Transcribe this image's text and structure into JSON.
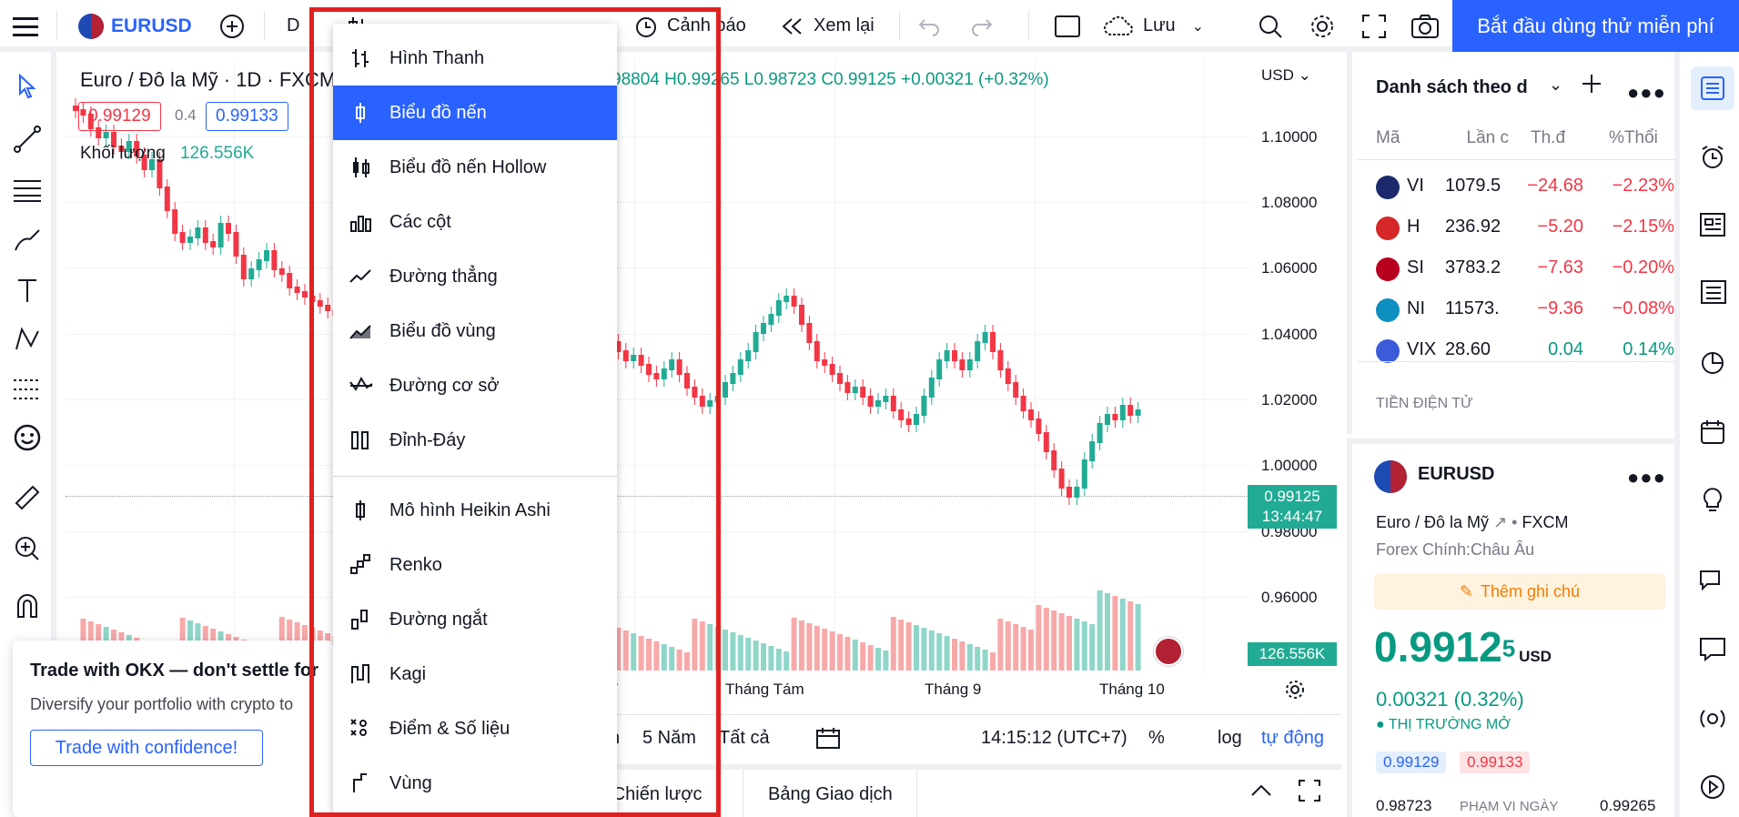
{
  "header": {
    "symbol": "EURUSD",
    "interval": "D",
    "alert_label": "Cảnh báo",
    "replay_label": "Xem lại",
    "save_label": "Lưu",
    "cta_label": "Bắt đầu dùng thử miễn phí"
  },
  "chart": {
    "title": "Euro / Đô la Mỹ · 1D · FXCM",
    "ohlc": "98804 H0.99265 L0.98723 C0.99125 +0.00321 (+0.32%)",
    "bid": "0.99129",
    "spread": "0.4",
    "ask": "0.99133",
    "volume_label": "Khối lượng",
    "volume_value": "126.556K",
    "currency": "USD",
    "price_ticks": [
      "1.10000",
      "1.08000",
      "1.06000",
      "1.04000",
      "1.02000",
      "1.00000",
      "0.98000",
      "0.96000"
    ],
    "time_ticks": [
      "Tháng Tám",
      "Tháng 9",
      "Tháng 10"
    ],
    "partial_time_tick": "7",
    "current_price": "0.99125",
    "countdown": "13:44:47",
    "volume_badge": "126.556K"
  },
  "bottom_bar": {
    "ranges": [
      "5 Năm",
      "Tất cả"
    ],
    "time": "14:15:12 (UTC+7)",
    "percent": "%",
    "log": "log",
    "auto": "tự động",
    "partial_range": "n"
  },
  "panel_tabs": {
    "strategy": "a Chiến lược",
    "trading": "Bảng Giao dịch"
  },
  "chart_type_menu": {
    "items": [
      {
        "label": "Hình Thanh",
        "icon": "bars-icon"
      },
      {
        "label": "Biểu đồ nến",
        "icon": "candles-icon",
        "selected": true
      },
      {
        "label": "Biểu đồ nến Hollow",
        "icon": "hollow-candles-icon"
      },
      {
        "label": "Các cột",
        "icon": "columns-icon"
      },
      {
        "label": "Đường thẳng",
        "icon": "line-icon"
      },
      {
        "label": "Biểu đồ vùng",
        "icon": "area-icon"
      },
      {
        "label": "Đường cơ sở",
        "icon": "baseline-icon"
      },
      {
        "label": "Đỉnh-Đáy",
        "icon": "high-low-icon"
      },
      {
        "label": "Mô hình Heikin Ashi",
        "icon": "heikin-ashi-icon"
      },
      {
        "label": "Renko",
        "icon": "renko-icon"
      },
      {
        "label": "Đường ngắt",
        "icon": "line-break-icon"
      },
      {
        "label": "Kagi",
        "icon": "kagi-icon"
      },
      {
        "label": "Điểm & Số liệu",
        "icon": "point-figure-icon"
      },
      {
        "label": "Vùng",
        "icon": "range-icon"
      }
    ]
  },
  "watchlist": {
    "title": "Danh sách theo d",
    "columns": [
      "Mã",
      "Lần c",
      "Th.đ",
      "%Thổi"
    ],
    "rows": [
      {
        "symbol": "VI",
        "last": "1079.5",
        "chg": "−24.68",
        "pct": "−2.23%",
        "color": "#f23645"
      },
      {
        "symbol": "H",
        "last": "236.92",
        "chg": "−5.20",
        "pct": "−2.15%",
        "color": "#f23645"
      },
      {
        "symbol": "SI",
        "last": "3783.2",
        "chg": "−7.63",
        "pct": "−0.20%",
        "color": "#f23645"
      },
      {
        "symbol": "NI",
        "last": "11573.",
        "chg": "−9.36",
        "pct": "−0.08%",
        "color": "#f23645"
      },
      {
        "symbol": "VIX",
        "last": "28.60",
        "chg": "0.04",
        "pct": "0.14%",
        "color": "#089981"
      }
    ],
    "section": "TIỀN ĐIỆN TỬ"
  },
  "details": {
    "symbol": "EURUSD",
    "name": "Euro / Đô la Mỹ",
    "exchange": "FXCM",
    "category": "Forex Chính:Châu Âu",
    "note_button": "Thêm ghi chú",
    "price": "0.9912",
    "price_sup": "5",
    "currency": "USD",
    "change": "0.00321 (0.32%)",
    "market_status": "THỊ TRƯỜNG MỞ",
    "bid": "0.99129",
    "ask": "0.99133",
    "low": "0.98723",
    "range_label": "PHẠM VI NGÀY",
    "high": "0.99265"
  },
  "ad": {
    "title": "Trade with OKX — don't settle for",
    "subtitle": "Diversify your portfolio with crypto to",
    "button": "Trade with confidence!"
  },
  "colors": {
    "accent": "#2962ff",
    "up": "#089981",
    "down": "#f23645",
    "highlight_border": "#e0211f"
  }
}
